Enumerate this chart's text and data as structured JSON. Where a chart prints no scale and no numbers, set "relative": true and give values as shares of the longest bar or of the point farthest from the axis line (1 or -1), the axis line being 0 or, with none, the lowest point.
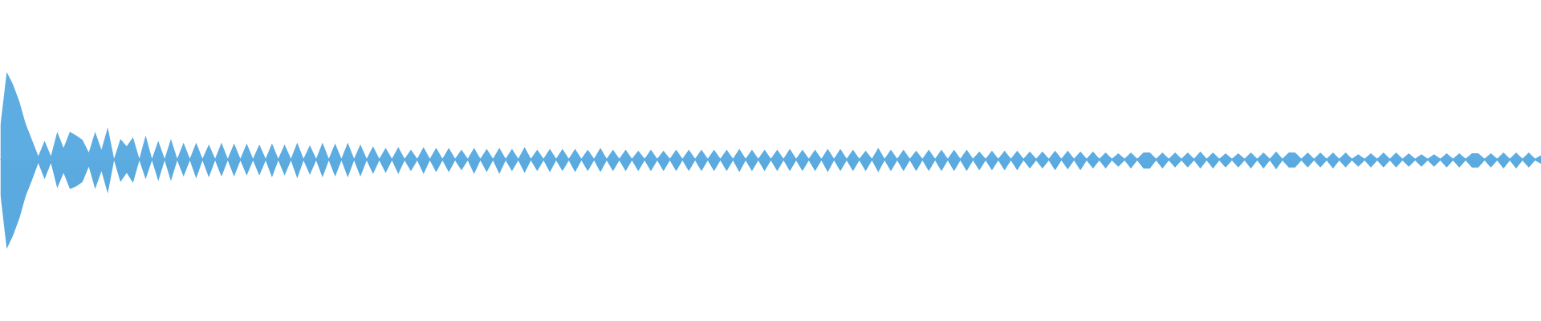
{
  "chart_data": {
    "type": "area",
    "relative": true,
    "tick_labels": false,
    "ref_lines": [
      {
        "axis": "y",
        "value": 0,
        "color": "#5dade2"
      }
    ],
    "categories": [
      null,
      null,
      null,
      null,
      null,
      null,
      null,
      null,
      null,
      null,
      null,
      null,
      null,
      null,
      null,
      null,
      null,
      null,
      null,
      null,
      null,
      null,
      null,
      null,
      null,
      null,
      null,
      null,
      null,
      null,
      null,
      null,
      null,
      null,
      null,
      null,
      null,
      null,
      null,
      null,
      null,
      null,
      null,
      null,
      null,
      null,
      null,
      null,
      null,
      null,
      null,
      null,
      null,
      null,
      null,
      null,
      null,
      null,
      null,
      null,
      null,
      null,
      null,
      null,
      null,
      null,
      null,
      null,
      null,
      null,
      null,
      null,
      null,
      null,
      null,
      null,
      null,
      null,
      null,
      null,
      null,
      null,
      null,
      null,
      null,
      null,
      null,
      null,
      null,
      null,
      null,
      null,
      null,
      null,
      null,
      null,
      null,
      null,
      null,
      null,
      null,
      null,
      null,
      null,
      null,
      null,
      null,
      null,
      null,
      null,
      null,
      null,
      null,
      null,
      null,
      null,
      null,
      null,
      null,
      null,
      null,
      null,
      null,
      null,
      null,
      null,
      null,
      null,
      null,
      null,
      null,
      null,
      null,
      null,
      null,
      null,
      null,
      null,
      null,
      null,
      null,
      null,
      null,
      null,
      null,
      null,
      null,
      null,
      null,
      null,
      null,
      null,
      null,
      null,
      null,
      null,
      null,
      null,
      null,
      null,
      null,
      null,
      null,
      null,
      null,
      null,
      null,
      null,
      null,
      null,
      null,
      null,
      null,
      null,
      null,
      null,
      null,
      null,
      null,
      null,
      null,
      null,
      null,
      null,
      null,
      null,
      null,
      null,
      null,
      null,
      null,
      null,
      null,
      null,
      null,
      null,
      null,
      null,
      null,
      null,
      null,
      null,
      null,
      null,
      null,
      null,
      null,
      null,
      null,
      null,
      null,
      null,
      null,
      null,
      null,
      null,
      null,
      null,
      null,
      null,
      null,
      null,
      null,
      null,
      null,
      null,
      null,
      null,
      null,
      null,
      null,
      null,
      null,
      null,
      null,
      null,
      null,
      null,
      null,
      null,
      null,
      null,
      null,
      null,
      null
    ],
    "series": [
      {
        "color": "#5dade2",
        "values": [
          0.38,
          0.98,
          0.84,
          0.65,
          0.4,
          0.22,
          0.04,
          0.21,
          0.04,
          0.31,
          0.13,
          0.31,
          0.27,
          0.22,
          0.08,
          0.31,
          0.11,
          0.36,
          0.01,
          0.23,
          0.15,
          0.25,
          0.01,
          0.27,
          0.01,
          0.21,
          0.01,
          0.23,
          0.01,
          0.19,
          0.01,
          0.19,
          0.01,
          0.17,
          0.01,
          0.19,
          0.01,
          0.18,
          0.01,
          0.18,
          0.01,
          0.17,
          0.01,
          0.18,
          0.01,
          0.17,
          0.01,
          0.19,
          0.01,
          0.16,
          0.01,
          0.19,
          0.01,
          0.18,
          0.01,
          0.19,
          0.01,
          0.17,
          0.01,
          0.15,
          0.01,
          0.13,
          0.01,
          0.14,
          0.01,
          0.11,
          0.01,
          0.14,
          0.01,
          0.13,
          0.01,
          0.13,
          0.01,
          0.11,
          0.01,
          0.13,
          0.01,
          0.12,
          0.01,
          0.13,
          0.01,
          0.12,
          0.01,
          0.14,
          0.01,
          0.11,
          0.01,
          0.12,
          0.01,
          0.12,
          0.01,
          0.12,
          0.01,
          0.11,
          0.01,
          0.13,
          0.01,
          0.11,
          0.01,
          0.11,
          0.01,
          0.1,
          0.01,
          0.11,
          0.01,
          0.1,
          0.01,
          0.11,
          0.01,
          0.11,
          0.01,
          0.11,
          0.01,
          0.11,
          0.01,
          0.11,
          0.01,
          0.12,
          0.01,
          0.11,
          0.01,
          0.11,
          0.01,
          0.11,
          0.01,
          0.12,
          0.01,
          0.11,
          0.01,
          0.11,
          0.01,
          0.12,
          0.01,
          0.12,
          0.01,
          0.11,
          0.01,
          0.1,
          0.01,
          0.13,
          0.01,
          0.11,
          0.01,
          0.11,
          0.01,
          0.1,
          0.01,
          0.11,
          0.01,
          0.11,
          0.01,
          0.11,
          0.01,
          0.11,
          0.01,
          0.09,
          0.01,
          0.1,
          0.01,
          0.1,
          0.01,
          0.1,
          0.01,
          0.09,
          0.01,
          0.09,
          0.01,
          0.1,
          0.01,
          0.1,
          0.01,
          0.09,
          0.01,
          0.09,
          0.01,
          0.08,
          0.01,
          0.07,
          0.01,
          0.08,
          0.01,
          0.08,
          0.08,
          0.01,
          0.08,
          0.01,
          0.08,
          0.01,
          0.08,
          0.01,
          0.09,
          0.01,
          0.08,
          0.01,
          0.07,
          0.01,
          0.07,
          0.01,
          0.08,
          0.01,
          0.08,
          0.01,
          0.09,
          0.01,
          0.08,
          0.08,
          0.01,
          0.08,
          0.01,
          0.08,
          0.01,
          0.08,
          0.01,
          0.08,
          0.01,
          0.06,
          0.01,
          0.07,
          0.01,
          0.08,
          0.01,
          0.08,
          0.01,
          0.07,
          0.01,
          0.06,
          0.01,
          0.06,
          0.01,
          0.07,
          0.01,
          0.07,
          0.01,
          0.07,
          0.07,
          0.01,
          0.07,
          0.01,
          0.08,
          0.01,
          0.08,
          0.01,
          0.08,
          0.01,
          0.05
        ]
      },
      {
        "color": "#5aaadf",
        "values": [
          -0.39,
          -1,
          -0.85,
          -0.66,
          -0.41,
          -0.23,
          -0.04,
          -0.22,
          -0.04,
          -0.32,
          -0.15,
          -0.33,
          -0.3,
          -0.25,
          -0.08,
          -0.33,
          -0.13,
          -0.38,
          -0.01,
          -0.25,
          -0.15,
          -0.26,
          -0.01,
          -0.22,
          -0.01,
          -0.24,
          -0.01,
          -0.24,
          -0.01,
          -0.19,
          -0.01,
          -0.21,
          -0.01,
          -0.2,
          -0.01,
          -0.19,
          -0.01,
          -0.19,
          -0.01,
          -0.18,
          -0.01,
          -0.18,
          -0.01,
          -0.2,
          -0.01,
          -0.18,
          -0.01,
          -0.21,
          -0.01,
          -0.17,
          -0.01,
          -0.2,
          -0.01,
          -0.19,
          -0.01,
          -0.2,
          -0.01,
          -0.19,
          -0.01,
          -0.16,
          -0.01,
          -0.15,
          -0.01,
          -0.16,
          -0.01,
          -0.13,
          -0.01,
          -0.16,
          -0.01,
          -0.14,
          -0.01,
          -0.14,
          -0.01,
          -0.12,
          -0.01,
          -0.16,
          -0.01,
          -0.14,
          -0.01,
          -0.16,
          -0.01,
          -0.13,
          -0.01,
          -0.15,
          -0.01,
          -0.13,
          -0.01,
          -0.14,
          -0.01,
          -0.13,
          -0.01,
          -0.14,
          -0.01,
          -0.13,
          -0.01,
          -0.14,
          -0.01,
          -0.13,
          -0.01,
          -0.13,
          -0.01,
          -0.13,
          -0.01,
          -0.13,
          -0.01,
          -0.13,
          -0.01,
          -0.13,
          -0.01,
          -0.13,
          -0.01,
          -0.13,
          -0.01,
          -0.13,
          -0.01,
          -0.13,
          -0.01,
          -0.14,
          -0.01,
          -0.13,
          -0.01,
          -0.13,
          -0.01,
          -0.13,
          -0.01,
          -0.13,
          -0.01,
          -0.13,
          -0.01,
          -0.13,
          -0.01,
          -0.14,
          -0.01,
          -0.13,
          -0.01,
          -0.13,
          -0.01,
          -0.13,
          -0.01,
          -0.14,
          -0.01,
          -0.13,
          -0.01,
          -0.13,
          -0.01,
          -0.13,
          -0.01,
          -0.13,
          -0.01,
          -0.13,
          -0.01,
          -0.13,
          -0.01,
          -0.13,
          -0.01,
          -0.12,
          -0.01,
          -0.12,
          -0.01,
          -0.12,
          -0.01,
          -0.12,
          -0.01,
          -0.1,
          -0.01,
          -0.1,
          -0.01,
          -0.12,
          -0.01,
          -0.11,
          -0.01,
          -0.12,
          -0.01,
          -0.1,
          -0.01,
          -0.1,
          -0.01,
          -0.08,
          -0.01,
          -0.1,
          -0.01,
          -0.1,
          -0.1,
          -0.01,
          -0.1,
          -0.01,
          -0.09,
          -0.01,
          -0.09,
          -0.01,
          -0.1,
          -0.01,
          -0.1,
          -0.01,
          -0.09,
          -0.01,
          -0.09,
          -0.01,
          -0.1,
          -0.01,
          -0.1,
          -0.01,
          -0.11,
          -0.01,
          -0.09,
          -0.09,
          -0.01,
          -0.09,
          -0.01,
          -0.09,
          -0.01,
          -0.1,
          -0.01,
          -0.09,
          -0.01,
          -0.08,
          -0.01,
          -0.09,
          -0.01,
          -0.09,
          -0.01,
          -0.09,
          -0.01,
          -0.08,
          -0.01,
          -0.08,
          -0.01,
          -0.08,
          -0.01,
          -0.09,
          -0.01,
          -0.09,
          -0.01,
          -0.09,
          -0.09,
          -0.01,
          -0.09,
          -0.01,
          -0.1,
          -0.01,
          -0.1,
          -0.01,
          -0.09,
          -0.01,
          -0.05
        ]
      }
    ]
  }
}
